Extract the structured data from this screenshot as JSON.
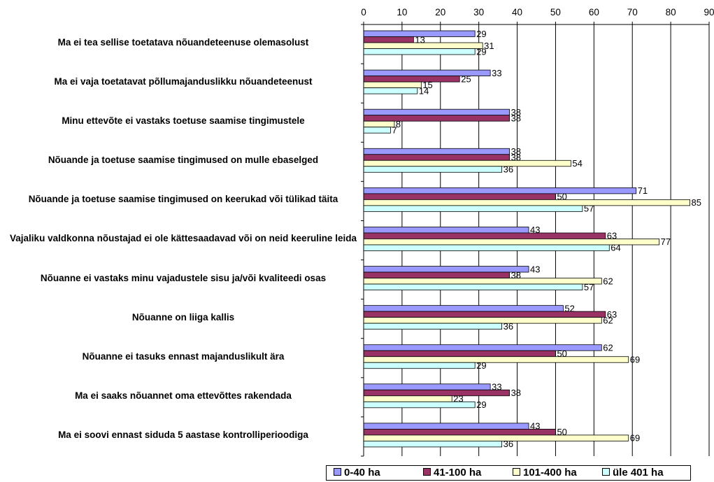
{
  "chart_data": {
    "type": "bar",
    "orientation": "horizontal",
    "categories": [
      "Ma ei tea sellise toetatava nõuandeteenuse olemasolust",
      "Ma ei vaja toetatavat põllumajanduslikku nõuandeteenust",
      "Minu ettevõte ei vastaks toetuse saamise tingimustele",
      "Nõuande ja toetuse saamise tingimused on mulle ebaselged",
      "Nõuande ja toetuse saamise tingimused on keerukad või tülikad täita",
      "Vajaliku valdkonna nõustajad ei ole kättesaadavad või on neid keeruline leida",
      "Nõuanne ei vastaks minu vajadustele sisu ja/või kvaliteedi osas",
      "Nõuanne on liiga kallis",
      "Nõuanne ei tasuks ennast majanduslikult ära",
      "Ma ei saaks nõuannet oma ettevõttes rakendada",
      "Ma ei soovi ennast siduda 5 aastase kontrolliperioodiga"
    ],
    "series": [
      {
        "name": "0-40 ha",
        "color": "#9999ff",
        "values": [
          29,
          33,
          38,
          38,
          71,
          43,
          43,
          52,
          62,
          33,
          43
        ]
      },
      {
        "name": "41-100 ha",
        "color": "#993366",
        "values": [
          13,
          25,
          38,
          38,
          50,
          63,
          38,
          63,
          50,
          38,
          50
        ]
      },
      {
        "name": "101-400 ha",
        "color": "#ffffcc",
        "values": [
          31,
          15,
          8,
          54,
          85,
          77,
          62,
          62,
          69,
          23,
          69
        ]
      },
      {
        "name": "üle 401 ha",
        "color": "#ccffff",
        "values": [
          29,
          14,
          7,
          36,
          57,
          64,
          57,
          36,
          29,
          29,
          36
        ]
      }
    ],
    "xlim": [
      0,
      90
    ],
    "xticks": [
      "0",
      "10",
      "20",
      "30",
      "40",
      "50",
      "60",
      "70",
      "80",
      "90"
    ],
    "axis_position": "top",
    "grid": true,
    "legend_position": "bottom-right",
    "title": "",
    "xlabel": "",
    "ylabel": ""
  }
}
